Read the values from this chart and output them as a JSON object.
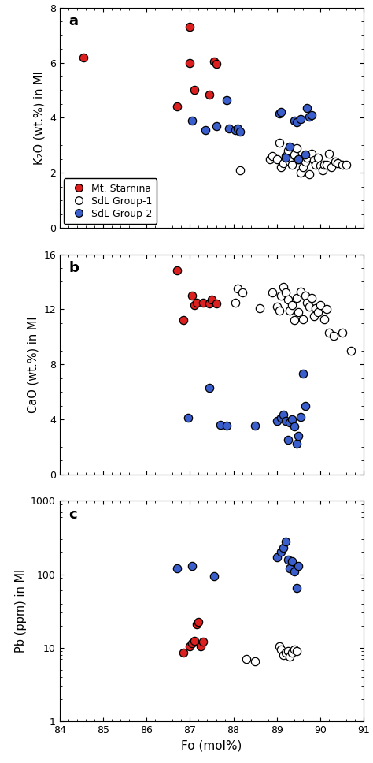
{
  "panel_a_label": "a",
  "panel_b_label": "b",
  "panel_c_label": "c",
  "xlabel": "Fo (mol%)",
  "ylabel_a": "K₂O (wt.%) in MI",
  "ylabel_b": "CaO (wt.%) in MI",
  "ylabel_c": "Pb (ppm) in MI",
  "xlim": [
    84,
    91
  ],
  "ylim_a": [
    0,
    8
  ],
  "ylim_b": [
    0,
    16
  ],
  "ylim_c_log": [
    1,
    1000
  ],
  "xticks": [
    84,
    85,
    86,
    87,
    88,
    89,
    90,
    91
  ],
  "yticks_a": [
    0,
    2,
    4,
    6,
    8
  ],
  "yticks_b": [
    0,
    4,
    8,
    12,
    16
  ],
  "yticks_c_log": [
    1,
    10,
    100,
    1000
  ],
  "legend_labels": [
    "Mt. Starnina",
    "SdL Group-1",
    "SdL Group-2"
  ],
  "red_color": "#dc2020",
  "white_color": "#ffffff",
  "blue_color": "#3a5fcd",
  "edge_color": "#000000",
  "panel_a": {
    "red_x": [
      84.55,
      86.7,
      87.0,
      87.0,
      87.1,
      87.45,
      87.55,
      87.6
    ],
    "red_y": [
      6.2,
      4.4,
      7.3,
      6.0,
      5.0,
      4.85,
      6.05,
      5.95
    ],
    "white_x": [
      88.15,
      88.85,
      88.9,
      89.0,
      89.05,
      89.1,
      89.15,
      89.2,
      89.25,
      89.3,
      89.35,
      89.4,
      89.45,
      89.5,
      89.55,
      89.6,
      89.65,
      89.7,
      89.75,
      89.8,
      89.85,
      89.9,
      89.95,
      90.0,
      90.05,
      90.1,
      90.15,
      90.2,
      90.25,
      90.35,
      90.4,
      90.5,
      90.6
    ],
    "white_y": [
      2.1,
      2.5,
      2.6,
      2.5,
      3.1,
      2.2,
      2.35,
      2.6,
      2.8,
      2.4,
      2.3,
      2.65,
      2.9,
      2.5,
      2.0,
      2.2,
      2.4,
      2.55,
      1.95,
      2.7,
      2.45,
      2.3,
      2.55,
      2.25,
      2.1,
      2.3,
      2.3,
      2.7,
      2.2,
      2.4,
      2.35,
      2.3,
      2.3
    ],
    "blue_x": [
      87.05,
      87.35,
      87.6,
      87.85,
      87.9,
      88.05,
      88.1,
      88.15,
      89.05,
      89.1,
      89.2,
      89.3,
      89.4,
      89.45,
      89.5,
      89.55,
      89.65,
      89.7,
      89.75,
      89.8
    ],
    "blue_y": [
      3.9,
      3.55,
      3.7,
      4.65,
      3.6,
      3.55,
      3.6,
      3.5,
      4.15,
      4.2,
      2.55,
      2.95,
      3.9,
      3.85,
      2.5,
      3.95,
      2.65,
      4.35,
      4.05,
      4.1
    ]
  },
  "panel_b": {
    "red_x": [
      86.7,
      86.85,
      87.05,
      87.1,
      87.15,
      87.3,
      87.45,
      87.5,
      87.6
    ],
    "red_y": [
      14.8,
      11.2,
      13.0,
      12.3,
      12.5,
      12.5,
      12.4,
      12.7,
      12.4
    ],
    "white_x": [
      88.05,
      88.1,
      88.2,
      88.6,
      88.9,
      89.0,
      89.05,
      89.1,
      89.15,
      89.2,
      89.25,
      89.3,
      89.35,
      89.4,
      89.45,
      89.5,
      89.55,
      89.6,
      89.65,
      89.7,
      89.75,
      89.8,
      89.85,
      89.9,
      89.95,
      90.0,
      90.1,
      90.15,
      90.2,
      90.3,
      90.5,
      90.7
    ],
    "white_y": [
      12.5,
      13.5,
      13.2,
      12.1,
      13.2,
      12.2,
      11.9,
      13.0,
      13.6,
      13.2,
      12.7,
      11.9,
      12.3,
      11.2,
      12.8,
      11.8,
      13.3,
      11.3,
      13.0,
      12.5,
      12.2,
      12.8,
      11.5,
      12.1,
      11.8,
      12.3,
      11.3,
      12.0,
      10.3,
      10.1,
      10.3,
      9.0
    ],
    "blue_x": [
      86.95,
      87.45,
      87.7,
      87.85,
      88.5,
      89.0,
      89.1,
      89.15,
      89.2,
      89.25,
      89.3,
      89.35,
      89.4,
      89.45,
      89.5,
      89.55,
      89.6,
      89.65
    ],
    "blue_y": [
      4.1,
      6.3,
      3.6,
      3.55,
      3.55,
      3.9,
      4.1,
      4.35,
      3.9,
      2.5,
      3.8,
      4.0,
      3.5,
      2.2,
      2.8,
      4.2,
      7.3,
      5.0
    ]
  },
  "panel_c": {
    "red_x": [
      86.85,
      87.0,
      87.05,
      87.1,
      87.15,
      87.2,
      87.25,
      87.3
    ],
    "red_y": [
      8.5,
      10.5,
      11.5,
      12.5,
      21.0,
      22.5,
      10.5,
      12.0
    ],
    "white_x": [
      88.3,
      88.5,
      89.05,
      89.1,
      89.15,
      89.2,
      89.25,
      89.3,
      89.35,
      89.4,
      89.45
    ],
    "white_y": [
      7.0,
      6.5,
      10.5,
      9.5,
      8.0,
      8.5,
      9.0,
      7.5,
      8.5,
      9.5,
      9.0
    ],
    "blue_x": [
      86.7,
      87.05,
      87.55,
      89.0,
      89.1,
      89.15,
      89.2,
      89.25,
      89.3,
      89.35,
      89.4,
      89.45,
      89.5
    ],
    "blue_y": [
      120.0,
      130.0,
      95.0,
      170.0,
      200.0,
      230.0,
      280.0,
      160.0,
      120.0,
      150.0,
      110.0,
      65.0,
      130.0
    ]
  }
}
